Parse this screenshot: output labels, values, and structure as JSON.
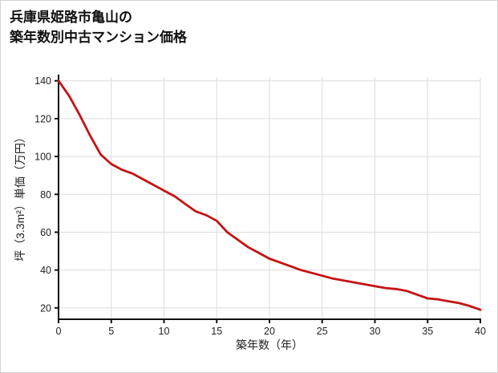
{
  "title": {
    "line1": "兵庫県姫路市亀山の",
    "line2": "築年数別中古マンション価格"
  },
  "chart_data": {
    "type": "line",
    "title": "兵庫県姫路市亀山の築年数別中古マンション価格",
    "xlabel": "築年数（年）",
    "ylabel": "坪（3.3m²）単価（万円）",
    "x": [
      0,
      1,
      2,
      3,
      4,
      5,
      6,
      7,
      8,
      9,
      10,
      11,
      12,
      13,
      14,
      15,
      16,
      17,
      18,
      19,
      20,
      21,
      22,
      23,
      24,
      25,
      26,
      27,
      28,
      29,
      30,
      31,
      32,
      33,
      34,
      35,
      36,
      37,
      38,
      39,
      40
    ],
    "y": [
      140,
      132,
      122,
      111,
      101,
      96,
      93,
      91,
      88,
      85,
      82,
      79,
      75,
      71,
      69,
      66,
      60,
      56,
      52,
      49,
      46,
      44,
      42,
      40,
      38.5,
      37,
      35.5,
      34.5,
      33.5,
      32.5,
      31.5,
      30.5,
      30,
      29,
      27,
      25,
      24.5,
      23.5,
      22.5,
      21,
      19
    ],
    "xlim": [
      0,
      40
    ],
    "ylim": [
      14,
      142
    ],
    "x_ticks": [
      0,
      5,
      10,
      15,
      20,
      25,
      30,
      35,
      40
    ],
    "y_ticks": [
      20,
      40,
      60,
      80,
      100,
      120,
      140
    ],
    "grid": true,
    "legend": "none",
    "line_color": "#c51313",
    "grid_color": "#dcdcdc",
    "axis_color": "#111111"
  }
}
